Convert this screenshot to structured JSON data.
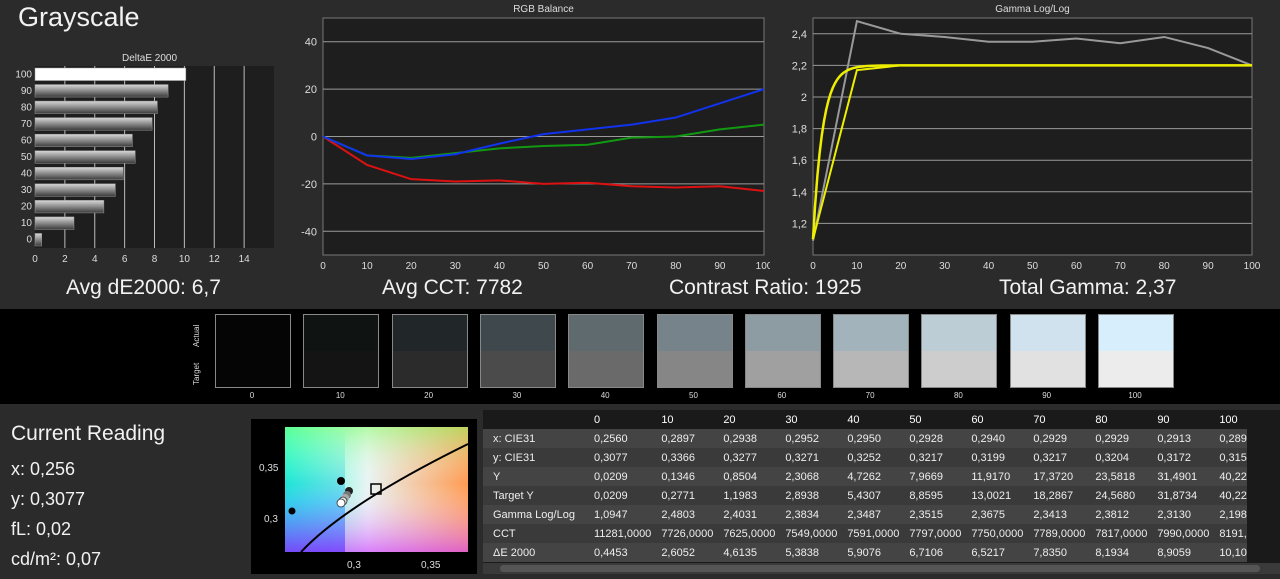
{
  "page_title": "Grayscale",
  "stats": {
    "avg_de": "Avg dE2000: 6,7",
    "avg_cct": "Avg CCT: 7782",
    "contrast": "Contrast Ratio: 1925",
    "gamma": "Total Gamma: 2,37"
  },
  "chart_data": [
    {
      "type": "bar",
      "title": "DeltaE 2000",
      "orientation": "horizontal",
      "categories": [
        "0",
        "10",
        "20",
        "30",
        "40",
        "50",
        "60",
        "70",
        "80",
        "90",
        "100"
      ],
      "values": [
        0.45,
        2.61,
        4.61,
        5.38,
        5.91,
        6.71,
        6.52,
        7.84,
        8.19,
        8.91,
        10.1
      ],
      "xlim": [
        0,
        16
      ],
      "xticks": [
        "0",
        "2",
        "4",
        "6",
        "8",
        "10",
        "12",
        "14"
      ]
    },
    {
      "type": "line",
      "title": "RGB Balance",
      "x": [
        0,
        10,
        20,
        30,
        40,
        50,
        60,
        70,
        80,
        90,
        100
      ],
      "series": [
        {
          "color": "#dd1111",
          "values": [
            0,
            -12,
            -18,
            -19,
            -18.5,
            -20,
            -19.5,
            -21,
            -21.5,
            -21,
            -23
          ]
        },
        {
          "color": "#119911",
          "values": [
            0,
            -8,
            -9,
            -7,
            -5,
            -4,
            -3.5,
            -0.5,
            0,
            3,
            5
          ]
        },
        {
          "color": "#1133ee",
          "values": [
            0,
            -8,
            -9.5,
            -7.5,
            -3,
            1,
            3,
            5,
            8,
            14,
            20
          ]
        }
      ],
      "ylim": [
        -50,
        50
      ],
      "xticks": [
        "0",
        "10",
        "20",
        "30",
        "40",
        "50",
        "60",
        "70",
        "80",
        "90",
        "100"
      ],
      "yticks": [
        "40",
        "20",
        "0",
        "-20",
        "-40"
      ]
    },
    {
      "type": "line",
      "title": "Gamma Log/Log",
      "x": [
        0,
        10,
        20,
        30,
        40,
        50,
        60,
        70,
        80,
        90,
        100
      ],
      "series": [
        {
          "color": "#999999",
          "values": [
            1.09,
            2.48,
            2.4,
            2.38,
            2.35,
            2.35,
            2.37,
            2.34,
            2.38,
            2.31,
            2.2
          ]
        },
        {
          "color": "#eeee00",
          "values": [
            1.1,
            2.17,
            2.2,
            2.2,
            2.2,
            2.2,
            2.2,
            2.2,
            2.2,
            2.2,
            2.2
          ]
        }
      ],
      "ylim": [
        1.0,
        2.5
      ],
      "xticks": [
        "0",
        "10",
        "20",
        "30",
        "40",
        "50",
        "60",
        "70",
        "80",
        "90",
        "100"
      ],
      "yticks": [
        "2,4",
        "2,2",
        "2",
        "1,8",
        "1,6",
        "1,4",
        "1,2"
      ]
    }
  ],
  "swatches": {
    "actual_label": "Actual",
    "target_label": "Target",
    "items": [
      {
        "label": "0",
        "actual": "#050505",
        "target": "#050505"
      },
      {
        "label": "10",
        "actual": "#0f1413",
        "target": "#141414"
      },
      {
        "label": "20",
        "actual": "#212728",
        "target": "#2b2b2b"
      },
      {
        "label": "30",
        "actual": "#3f484c",
        "target": "#4b4b4b"
      },
      {
        "label": "40",
        "actual": "#5e6a6e",
        "target": "#6a6a6a"
      },
      {
        "label": "50",
        "actual": "#76838a",
        "target": "#868686"
      },
      {
        "label": "60",
        "actual": "#8d9ba2",
        "target": "#a0a0a0"
      },
      {
        "label": "70",
        "actual": "#a3b3bb",
        "target": "#b7b7b7"
      },
      {
        "label": "80",
        "actual": "#bccdd6",
        "target": "#cdcdcd"
      },
      {
        "label": "90",
        "actual": "#cfe2ee",
        "target": "#e1e1e1"
      },
      {
        "label": "100",
        "actual": "#d7eefc",
        "target": "#ececec"
      }
    ]
  },
  "reading": {
    "heading": "Current Reading",
    "x": "x: 0,256",
    "y": "y: 0,3077",
    "fl": "fL: 0,02",
    "cdm2": "cd/m²: 0,07"
  },
  "cie": {
    "ticks_y": [
      "0,35",
      "0,3"
    ],
    "ticks_x": [
      "0,3",
      "0,35"
    ]
  },
  "table": {
    "header": [
      "",
      "0",
      "10",
      "20",
      "30",
      "40",
      "50",
      "60",
      "70",
      "80",
      "90",
      "100"
    ],
    "rows": [
      [
        "x: CIE31",
        "0,2560",
        "0,2897",
        "0,2938",
        "0,2952",
        "0,2950",
        "0,2928",
        "0,2940",
        "0,2929",
        "0,2929",
        "0,2913",
        "0,289"
      ],
      [
        "y: CIE31",
        "0,3077",
        "0,3366",
        "0,3277",
        "0,3271",
        "0,3252",
        "0,3217",
        "0,3199",
        "0,3217",
        "0,3204",
        "0,3172",
        "0,315"
      ],
      [
        "Y",
        "0,0209",
        "0,1346",
        "0,8504",
        "2,3068",
        "4,7262",
        "7,9669",
        "11,9170",
        "17,3720",
        "23,5818",
        "31,4901",
        "40,22"
      ],
      [
        "Target Y",
        "0,0209",
        "0,2771",
        "1,1983",
        "2,8938",
        "5,4307",
        "8,8595",
        "13,0021",
        "18,2867",
        "24,5680",
        "31,8734",
        "40,22"
      ],
      [
        "Gamma Log/Log",
        "1,0947",
        "2,4803",
        "2,4031",
        "2,3834",
        "2,3487",
        "2,3515",
        "2,3675",
        "2,3413",
        "2,3812",
        "2,3130",
        "2,198"
      ],
      [
        "CCT",
        "11281,0000",
        "7726,0000",
        "7625,0000",
        "7549,0000",
        "7591,0000",
        "7797,0000",
        "7750,0000",
        "7789,0000",
        "7817,0000",
        "7990,0000",
        "8191,"
      ],
      [
        "ΔE 2000",
        "0,4453",
        "2,6052",
        "4,6135",
        "5,3838",
        "5,9076",
        "6,7106",
        "6,5217",
        "7,8350",
        "8,1934",
        "8,9059",
        "10,10"
      ]
    ]
  }
}
